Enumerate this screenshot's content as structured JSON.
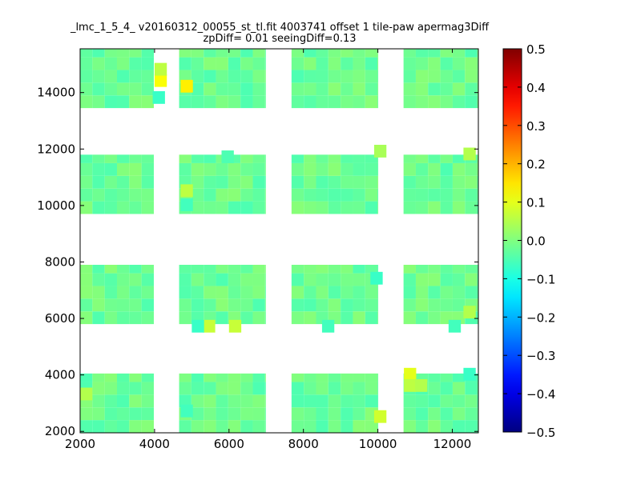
{
  "chart_data": {
    "type": "heatmap",
    "title_line1": "_lmc_1_5_4_ v20160312_00055_st_tl.fit 4003741 offset 1 tile-paw apermag3Diff",
    "title_line2": "zpDiff= 0.01 seeingDiff=0.13",
    "xlabel": "",
    "ylabel": "",
    "xlim": [
      2000,
      12700
    ],
    "ylim": [
      1950,
      15550
    ],
    "xticks": [
      {
        "v": 2000,
        "label": "2000"
      },
      {
        "v": 4000,
        "label": "4000"
      },
      {
        "v": 6000,
        "label": "6000"
      },
      {
        "v": 8000,
        "label": "8000"
      },
      {
        "v": 10000,
        "label": "10000"
      },
      {
        "v": 12000,
        "label": "12000"
      }
    ],
    "yticks": [
      {
        "v": 2000,
        "label": "2000"
      },
      {
        "v": 4000,
        "label": "4000"
      },
      {
        "v": 6000,
        "label": "6000"
      },
      {
        "v": 8000,
        "label": "8000"
      },
      {
        "v": 10000,
        "label": "10000"
      },
      {
        "v": 12000,
        "label": "12000"
      },
      {
        "v": 14000,
        "label": "14000"
      }
    ],
    "colorbar": {
      "colormap": "jet",
      "vmin": -0.5,
      "vmax": 0.5,
      "ticks": [
        {
          "v": 0.5,
          "label": "0.5"
        },
        {
          "v": 0.4,
          "label": "0.4"
        },
        {
          "v": 0.3,
          "label": "0.3"
        },
        {
          "v": 0.2,
          "label": "0.2"
        },
        {
          "v": 0.1,
          "label": "0.1"
        },
        {
          "v": 0.0,
          "label": "0.0"
        },
        {
          "v": -0.1,
          "label": "−0.1"
        },
        {
          "v": -0.2,
          "label": "−0.2"
        },
        {
          "v": -0.3,
          "label": "−0.3"
        },
        {
          "v": -0.4,
          "label": "−0.4"
        },
        {
          "v": -0.5,
          "label": "−0.5"
        }
      ]
    },
    "cell_size": {
      "dx": 330,
      "dy": 450
    },
    "tile_columns": [
      {
        "x0": 2000,
        "x1": 3980
      },
      {
        "x0": 4660,
        "x1": 6990
      },
      {
        "x0": 7680,
        "x1": 10010
      },
      {
        "x0": 10690,
        "x1": 12700
      }
    ],
    "tile_rows": [
      {
        "y0": 1950,
        "y1": 4050
      },
      {
        "y0": 5800,
        "y1": 7900
      },
      {
        "y0": 9700,
        "y1": 11800
      },
      {
        "y0": 13450,
        "y1": 15550
      }
    ],
    "base_value": -0.02,
    "hot_cells": [
      {
        "x": 4000,
        "y": 14200,
        "v": 0.12
      },
      {
        "x": 4700,
        "y": 14000,
        "v": 0.14
      },
      {
        "x": 4000,
        "y": 14600,
        "v": 0.06
      },
      {
        "x": 10700,
        "y": 3800,
        "v": 0.1
      },
      {
        "x": 10700,
        "y": 3400,
        "v": 0.06
      },
      {
        "x": 11000,
        "y": 3400,
        "v": 0.05
      },
      {
        "x": 9900,
        "y": 2300,
        "v": 0.08
      },
      {
        "x": 4700,
        "y": 10300,
        "v": 0.06
      },
      {
        "x": 5300,
        "y": 5500,
        "v": 0.07
      },
      {
        "x": 6000,
        "y": 5500,
        "v": 0.07
      },
      {
        "x": 12300,
        "y": 6000,
        "v": 0.05
      },
      {
        "x": 12300,
        "y": 11600,
        "v": 0.05
      },
      {
        "x": 2000,
        "y": 3100,
        "v": 0.05
      },
      {
        "x": 9900,
        "y": 11700,
        "v": 0.04
      }
    ],
    "cold_cells": [
      {
        "x": 3950,
        "y": 13600,
        "v": -0.07
      },
      {
        "x": 12300,
        "y": 3800,
        "v": -0.07
      },
      {
        "x": 9800,
        "y": 7200,
        "v": -0.07
      },
      {
        "x": 5000,
        "y": 5500,
        "v": -0.07
      },
      {
        "x": 8500,
        "y": 5500,
        "v": -0.06
      },
      {
        "x": 11900,
        "y": 5500,
        "v": -0.06
      },
      {
        "x": 4700,
        "y": 9800,
        "v": -0.06
      },
      {
        "x": 4700,
        "y": 2500,
        "v": -0.06
      },
      {
        "x": 5800,
        "y": 11500,
        "v": -0.05
      }
    ]
  }
}
